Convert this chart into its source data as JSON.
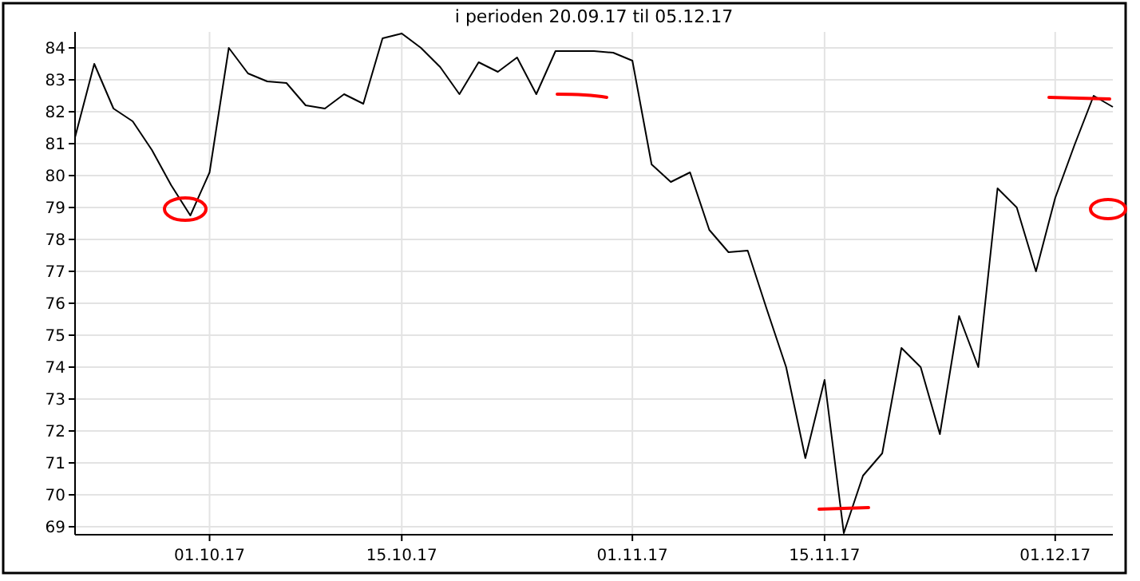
{
  "chart_data": {
    "type": "line",
    "title": "i perioden 20.09.17 til 05.12.17",
    "categories": [
      null,
      null,
      null,
      null,
      null,
      null,
      null,
      "01.10.17",
      null,
      null,
      null,
      null,
      null,
      null,
      null,
      null,
      null,
      "15.10.17",
      null,
      null,
      null,
      null,
      null,
      null,
      null,
      null,
      null,
      null,
      null,
      "01.11.17",
      null,
      null,
      null,
      null,
      null,
      null,
      null,
      null,
      null,
      "15.11.17",
      null,
      null,
      null,
      null,
      null,
      null,
      null,
      null,
      null,
      null,
      null,
      "01.12.17",
      null,
      null,
      null
    ],
    "series": [
      {
        "color": "#000000",
        "values": [
          81.2,
          83.5,
          82.1,
          81.7,
          80.8,
          79.7,
          78.75,
          80.1,
          84.0,
          83.2,
          82.95,
          82.9,
          82.2,
          82.1,
          82.55,
          82.25,
          84.3,
          84.45,
          84.0,
          83.4,
          82.55,
          83.55,
          83.25,
          83.7,
          82.55,
          83.9,
          83.9,
          83.9,
          83.85,
          83.6,
          80.35,
          79.8,
          80.1,
          78.3,
          77.6,
          77.65,
          75.8,
          74.0,
          71.15,
          73.6,
          68.8,
          70.6,
          71.3,
          74.6,
          74.0,
          71.9,
          75.6,
          74.0,
          79.6,
          79.0,
          77.0,
          79.3,
          80.95,
          82.5,
          82.15
        ]
      }
    ],
    "ylim": [
      68.75,
      84.5
    ],
    "yticks": [
      69,
      70,
      71,
      72,
      73,
      74,
      75,
      76,
      77,
      78,
      79,
      80,
      81,
      82,
      83,
      84
    ],
    "grid": true,
    "marker": "none",
    "line_style": "solid"
  }
}
